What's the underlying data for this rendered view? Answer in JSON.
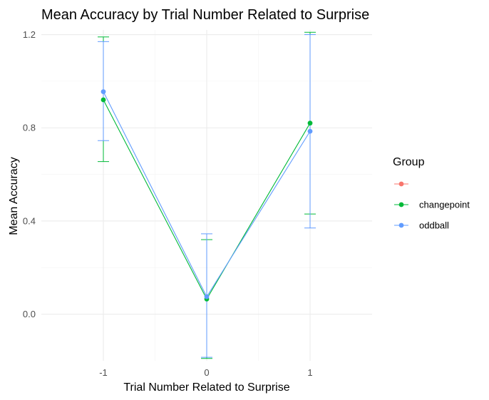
{
  "chart_data": {
    "type": "line",
    "title": "Mean Accuracy by Trial Number Related to Surprise",
    "xlabel": "Trial Number Related to Surprise",
    "ylabel": "Mean Accuracy",
    "x_ticks": [
      -1,
      0,
      1
    ],
    "x_tick_labels": [
      "-1",
      "0",
      "1"
    ],
    "y_ticks": [
      0.0,
      0.4,
      0.8,
      1.2
    ],
    "y_tick_labels": [
      "0.0",
      "0.4",
      "0.8",
      "1.2"
    ],
    "xlim": [
      -1.6,
      1.6
    ],
    "ylim": [
      -0.2,
      1.22
    ],
    "grid": true,
    "legend": {
      "title": "Group",
      "position": "right"
    },
    "series": [
      {
        "name": "",
        "color": "#F8766D",
        "x": [],
        "y": [],
        "ymin": [],
        "ymax": []
      },
      {
        "name": "changepoint",
        "color": "#00BA38",
        "x": [
          -1,
          0,
          1
        ],
        "y": [
          0.92,
          0.065,
          0.82
        ],
        "ymin": [
          0.655,
          -0.19,
          0.43
        ],
        "ymax": [
          1.19,
          0.32,
          1.21
        ]
      },
      {
        "name": "oddball",
        "color": "#619CFF",
        "x": [
          -1,
          0,
          1
        ],
        "y": [
          0.955,
          0.075,
          0.785
        ],
        "ymin": [
          0.745,
          -0.185,
          0.37
        ],
        "ymax": [
          1.17,
          0.345,
          1.2
        ]
      }
    ]
  }
}
